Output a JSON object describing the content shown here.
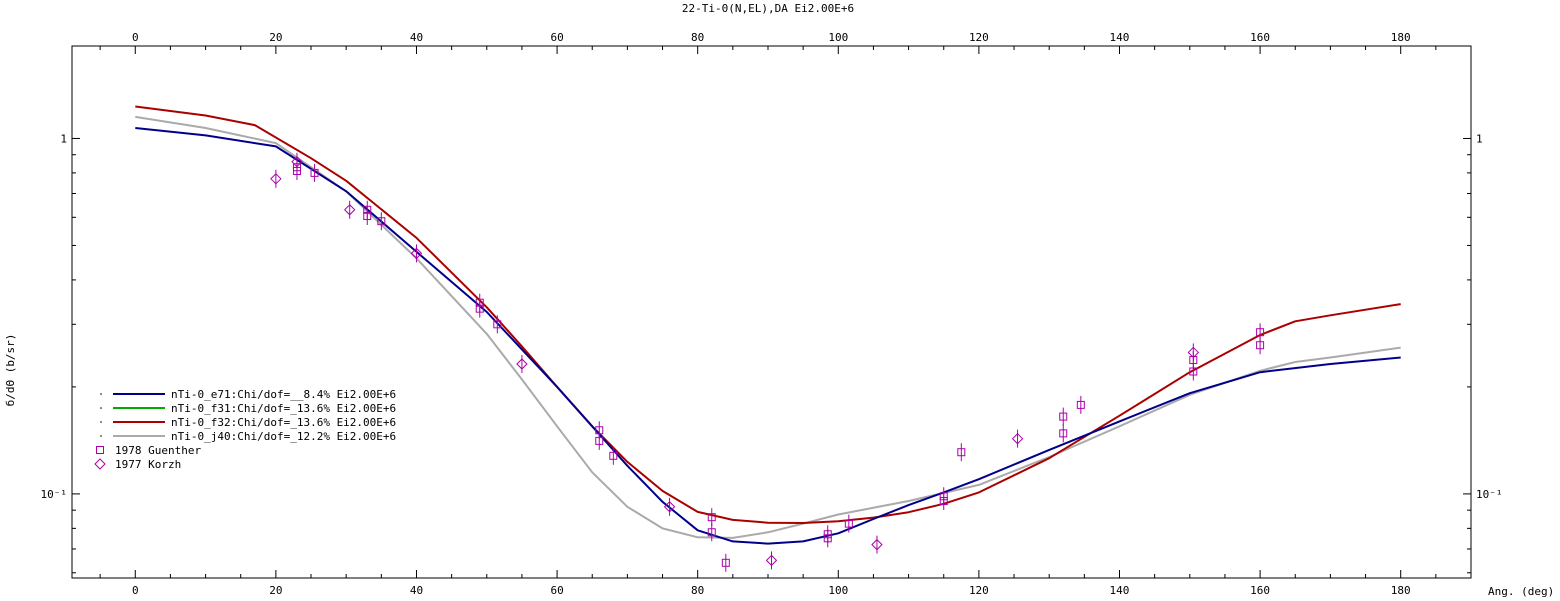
{
  "chart_data": {
    "type": "scatter",
    "title": "22-Ti-0(N,EL),DA Ei2.00E+6",
    "xlabel": "Ang. (deg)",
    "ylabel": "б/dΘ (b/sr)",
    "xlim": [
      -9,
      190
    ],
    "ylim": [
      0.058,
      1.82
    ],
    "yscale": "log",
    "x_ticks": [
      0,
      20,
      40,
      60,
      80,
      100,
      120,
      140,
      160,
      180
    ],
    "x_tick_labels": [
      "0",
      "20",
      "40",
      "60",
      "80",
      "100",
      "120",
      "140",
      "160",
      "180"
    ],
    "y_ticks": [
      1,
      0.1
    ],
    "y_tick_labels": [
      "1",
      "10⁻¹"
    ],
    "legend_position": "left",
    "series": [
      {
        "name": "nTi-0_e71:Chi/dof=__8.4% Ei2.00E+6",
        "kind": "line",
        "color": "#00008b",
        "x": [
          0,
          10,
          20,
          30,
          40,
          50,
          55,
          60,
          65,
          70,
          75,
          80,
          85,
          90,
          95,
          100,
          105,
          110,
          115,
          120,
          130,
          140,
          150,
          160,
          170,
          180
        ],
        "y": [
          1.07,
          1.02,
          0.95,
          0.71,
          0.48,
          0.325,
          0.255,
          0.2,
          0.155,
          0.12,
          0.095,
          0.079,
          0.0735,
          0.0725,
          0.0735,
          0.0775,
          0.085,
          0.093,
          0.101,
          0.11,
          0.133,
          0.16,
          0.192,
          0.22,
          0.232,
          0.242
        ]
      },
      {
        "name": "nTi-0_f31:Chi/dof=_13.6% Ei2.00E+6",
        "kind": "line",
        "color": "#00aa00",
        "x": [],
        "y": []
      },
      {
        "name": "nTi-0_f32:Chi/dof=_13.6% Ei2.00E+6",
        "kind": "line",
        "color": "#aa0000",
        "x": [
          0,
          10,
          17,
          25,
          30,
          40,
          50,
          55,
          60,
          65,
          70,
          75,
          80,
          85,
          90,
          95,
          100,
          105,
          110,
          115,
          120,
          130,
          140,
          150,
          160,
          165,
          170,
          180
        ],
        "y": [
          1.23,
          1.16,
          1.09,
          0.88,
          0.76,
          0.525,
          0.335,
          0.26,
          0.2,
          0.155,
          0.123,
          0.102,
          0.089,
          0.0845,
          0.083,
          0.0828,
          0.0838,
          0.0858,
          0.0888,
          0.0938,
          0.101,
          0.126,
          0.166,
          0.22,
          0.28,
          0.306,
          0.318,
          0.342
        ]
      },
      {
        "name": "nTi-0_j40:Chi/dof=_12.2% Ei2.00E+6",
        "kind": "line",
        "color": "#aaaaaa",
        "x": [
          0,
          10,
          20,
          30,
          40,
          50,
          55,
          60,
          65,
          70,
          75,
          80,
          85,
          90,
          95,
          100,
          110,
          120,
          130,
          140,
          150,
          160,
          165,
          170,
          180
        ],
        "y": [
          1.15,
          1.07,
          0.97,
          0.71,
          0.46,
          0.282,
          0.21,
          0.155,
          0.115,
          0.092,
          0.08,
          0.0755,
          0.0752,
          0.078,
          0.0825,
          0.0875,
          0.0955,
          0.106,
          0.127,
          0.155,
          0.19,
          0.222,
          0.235,
          0.242,
          0.258
        ]
      },
      {
        "name": "1978 Guenther",
        "kind": "markers",
        "marker": "square",
        "color": "#aa00aa",
        "x": [
          23,
          23,
          25.5,
          33,
          33,
          35,
          49,
          49,
          51.5,
          66,
          66,
          68,
          82,
          82,
          84,
          98.5,
          98.5,
          101.5,
          115,
          115,
          117.5,
          132,
          132,
          134.5,
          150.5,
          150.5,
          160,
          160
        ],
        "y": [
          0.83,
          0.81,
          0.8,
          0.63,
          0.605,
          0.585,
          0.345,
          0.332,
          0.3,
          0.151,
          0.141,
          0.128,
          0.086,
          0.078,
          0.064,
          0.077,
          0.075,
          0.0825,
          0.0985,
          0.0955,
          0.131,
          0.165,
          0.148,
          0.178,
          0.238,
          0.221,
          0.285,
          0.262
        ]
      },
      {
        "name": "1977 Korzh",
        "kind": "markers",
        "marker": "diamond",
        "color": "#aa00aa",
        "x": [
          20,
          23,
          30.5,
          40,
          55,
          76,
          90.5,
          105.5,
          125.5,
          150.5
        ],
        "y": [
          0.77,
          0.86,
          0.63,
          0.475,
          0.232,
          0.092,
          0.065,
          0.072,
          0.143,
          0.25
        ]
      }
    ]
  }
}
